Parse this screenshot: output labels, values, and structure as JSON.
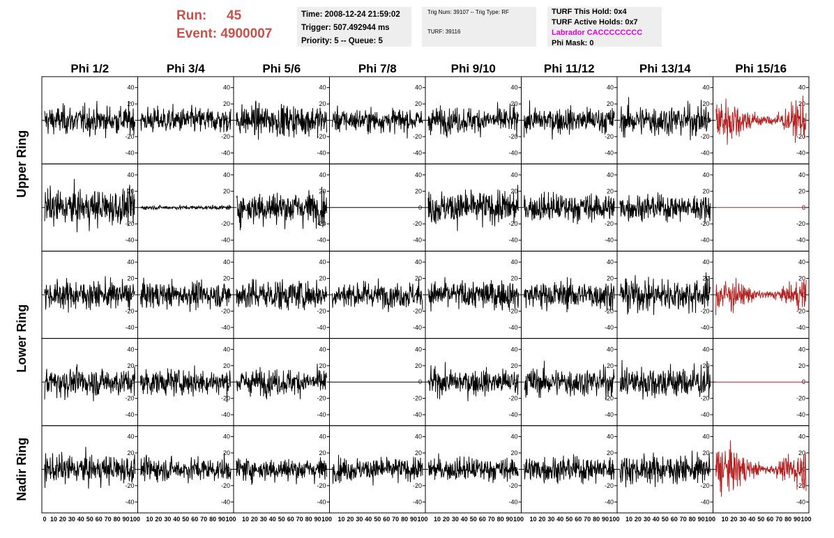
{
  "header": {
    "run_label": "Run:",
    "run_value": "45",
    "event_label": "Event:",
    "event_value": "4900007",
    "time_line": "Time: 2008-12-24 21:59:02",
    "trigger_line": "Trigger: 507.492944 ms",
    "priority_line": "Priority: 5 -- Queue: 5",
    "trig_line": "Trig Num: 39107 -- Trig Type: RF",
    "turf_line": "TURF: 39116",
    "turf_hold_line": "TURF This Hold: 0x4",
    "turf_active_line": "TURF Active Holds: 0x7",
    "labrador_line": "Labrador CACCCCCCCC",
    "phi_mask_line": "Phi Mask: 0"
  },
  "colors": {
    "run_text": "#c8504a",
    "labrador_text": "#e000e0",
    "trace_normal": "#000000",
    "trace_highlight": "#b22222",
    "info_box_bg": "#eeeeee"
  },
  "chart_data": {
    "type": "line",
    "columns": [
      "Phi 1/2",
      "Phi 3/4",
      "Phi 5/6",
      "Phi 7/8",
      "Phi 9/10",
      "Phi 11/12",
      "Phi 13/14",
      "Phi 15/16"
    ],
    "ring_labels": [
      "Upper Ring",
      "Lower Ring",
      "Nadir Ring"
    ],
    "rows": 5,
    "row_ring_map": [
      0,
      0,
      1,
      1,
      2
    ],
    "xlim": [
      0,
      100
    ],
    "ylim": [
      -50,
      50
    ],
    "x_tick_labels": [
      "0",
      "10",
      "20",
      "30",
      "40",
      "50",
      "60",
      "70",
      "80",
      "90",
      "100"
    ],
    "y_tick_labels": [
      "40",
      "20",
      "0",
      "-20",
      "-40"
    ],
    "y_ticks": [
      40,
      20,
      0,
      -20,
      -40
    ],
    "panel_style": [
      [
        "normal",
        "normal",
        "normal",
        "normal",
        "normal",
        "normal",
        "normal",
        "highlight"
      ],
      [
        "normal",
        "quiet",
        "normal",
        "flat",
        "normal",
        "normal",
        "normal",
        "flat_highlight"
      ],
      [
        "normal",
        "normal",
        "normal",
        "normal",
        "normal",
        "normal",
        "normal",
        "highlight"
      ],
      [
        "normal",
        "normal",
        "normal",
        "flat",
        "normal",
        "normal",
        "normal",
        "flat_highlight"
      ],
      [
        "normal",
        "normal",
        "normal",
        "normal",
        "normal",
        "normal",
        "normal",
        "highlight"
      ]
    ],
    "amplitude": [
      [
        22,
        20,
        24,
        18,
        20,
        20,
        24,
        40
      ],
      [
        28,
        3,
        26,
        0,
        26,
        22,
        20,
        0
      ],
      [
        22,
        20,
        24,
        20,
        22,
        22,
        26,
        30
      ],
      [
        22,
        20,
        20,
        0,
        20,
        22,
        26,
        0
      ],
      [
        22,
        18,
        18,
        18,
        18,
        20,
        22,
        40
      ]
    ]
  }
}
